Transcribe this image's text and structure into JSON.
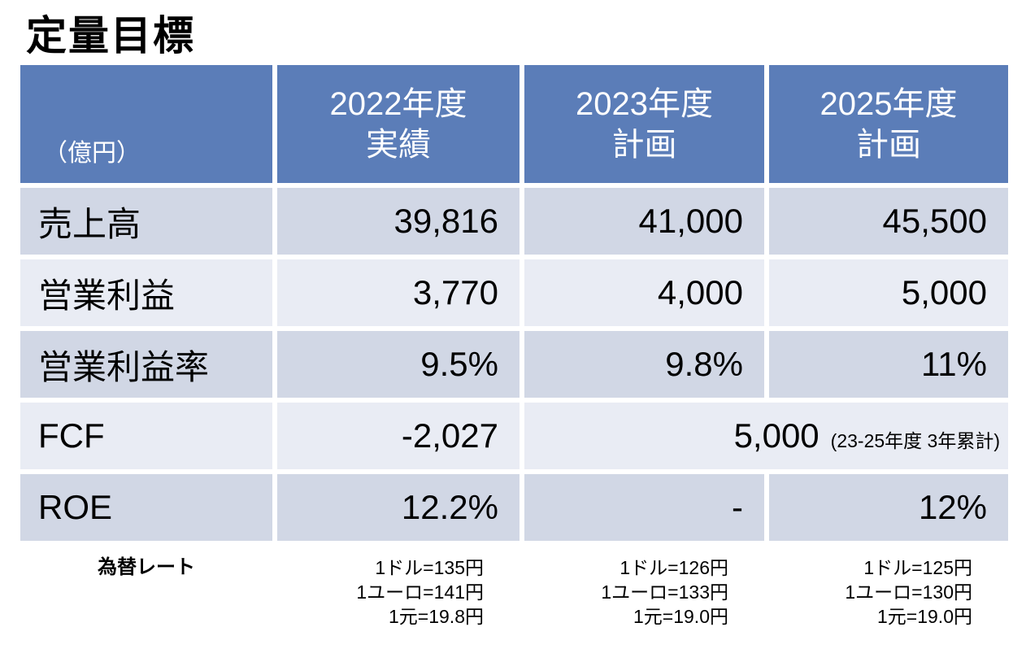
{
  "title": "定量目標",
  "table": {
    "header": {
      "unit": "（億円）",
      "columns": [
        {
          "year": "2022年度",
          "type": "実績"
        },
        {
          "year": "2023年度",
          "type": "計画"
        },
        {
          "year": "2025年度",
          "type": "計画"
        }
      ]
    },
    "rows": [
      {
        "label": "売上高",
        "values": [
          "39,816",
          "41,000",
          "45,500"
        ]
      },
      {
        "label": "営業利益",
        "values": [
          "3,770",
          "4,000",
          "5,000"
        ]
      },
      {
        "label": "営業利益率",
        "values": [
          "9.5%",
          "9.8%",
          "11%"
        ]
      },
      {
        "label": "FCF",
        "fy2022": "-2,027",
        "plan_value": "5,000",
        "plan_note": "(23-25年度 3年累計)"
      },
      {
        "label": "ROE",
        "values": [
          "12.2%",
          "-",
          "12%"
        ]
      }
    ],
    "footer": {
      "label": "為替レート",
      "rates": [
        {
          "usd": "1ドル=135円",
          "eur": "1ユーロ=141円",
          "cny": "1元=19.8円"
        },
        {
          "usd": "1ドル=126円",
          "eur": "1ユーロ=133円",
          "cny": "1元=19.0円"
        },
        {
          "usd": "1ドル=125円",
          "eur": "1ユーロ=130円",
          "cny": "1元=19.0円"
        }
      ]
    }
  },
  "colors": {
    "header_bg": "#5B7DB8",
    "band_dark": "#D1D7E5",
    "band_light": "#E9ECF4",
    "header_text": "#FFFFFF",
    "body_text": "#000000",
    "background": "#FFFFFF"
  }
}
